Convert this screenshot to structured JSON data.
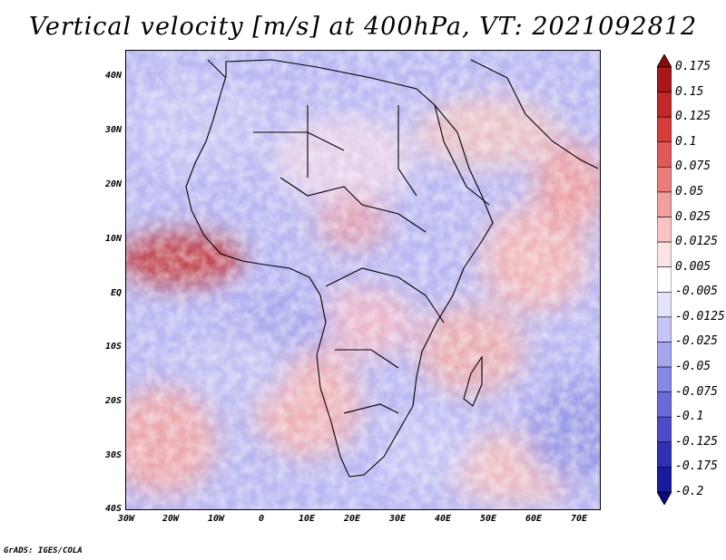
{
  "title": "Vertical velocity [m/s] at 400hPa, VT: 2021092812",
  "footer": "GrADS: IGES/COLA",
  "axes": {
    "lat_labels": [
      "40N",
      "30N",
      "20N",
      "10N",
      "EQ",
      "10S",
      "20S",
      "30S",
      "40S"
    ],
    "lon_labels": [
      "30W",
      "20W",
      "10W",
      "0",
      "10E",
      "20E",
      "30E",
      "40E",
      "50E",
      "60E",
      "70E"
    ]
  },
  "colorbar": {
    "labels": [
      "0.175",
      "0.15",
      "0.125",
      "0.1",
      "0.075",
      "0.05",
      "0.025",
      "0.0125",
      "0.005",
      "-0.005",
      "-0.0125",
      "-0.025",
      "-0.05",
      "-0.075",
      "-0.1",
      "-0.125",
      "-0.175",
      "-0.2"
    ],
    "colors": [
      "#8b0c0c",
      "#a81818",
      "#c22828",
      "#d43c3c",
      "#e05a5a",
      "#ea7c7c",
      "#f19f9f",
      "#f7c3c3",
      "#fbe3e3",
      "#ffffff",
      "#e3e3fb",
      "#c5c5f6",
      "#a6a6ef",
      "#8888e6",
      "#6a6ad9",
      "#4c4cc9",
      "#3030b4",
      "#1a1a9c",
      "#0a0a80"
    ]
  }
}
